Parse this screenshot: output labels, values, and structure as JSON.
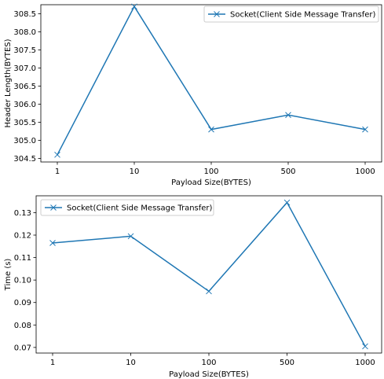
{
  "chart_data": [
    {
      "type": "line",
      "categories": [
        "1",
        "10",
        "100",
        "500",
        "1000"
      ],
      "series": [
        {
          "name": "Socket(Client Side Message Transfer)",
          "values": [
            304.6,
            308.7,
            305.3,
            305.7,
            305.3
          ],
          "color": "#1f77b4",
          "marker": "x"
        }
      ],
      "title": "",
      "xlabel": "Payload Size(BYTES)",
      "ylabel": "Header Length(BYTES)",
      "ylim": [
        304.4,
        308.75
      ],
      "yticks": [
        304.5,
        305.0,
        305.5,
        306.0,
        306.5,
        307.0,
        307.5,
        308.0,
        308.5
      ],
      "ytick_labels": [
        "304.5",
        "305.0",
        "305.5",
        "306.0",
        "306.5",
        "307.0",
        "307.5",
        "308.0",
        "308.5"
      ],
      "grid": false,
      "legend_position": "upper right"
    },
    {
      "type": "line",
      "categories": [
        "1",
        "10",
        "100",
        "500",
        "1000"
      ],
      "series": [
        {
          "name": "Socket(Client Side Message Transfer)",
          "values": [
            0.1165,
            0.1195,
            0.095,
            0.1345,
            0.0705
          ],
          "color": "#1f77b4",
          "marker": "x"
        }
      ],
      "title": "",
      "xlabel": "Payload Size(BYTES)",
      "ylabel": "Time (s)",
      "ylim": [
        0.0675,
        0.1375
      ],
      "yticks": [
        0.07,
        0.08,
        0.09,
        0.1,
        0.11,
        0.12,
        0.13
      ],
      "ytick_labels": [
        "0.07",
        "0.08",
        "0.09",
        "0.10",
        "0.11",
        "0.12",
        "0.13"
      ],
      "grid": false,
      "legend_position": "upper left"
    }
  ]
}
